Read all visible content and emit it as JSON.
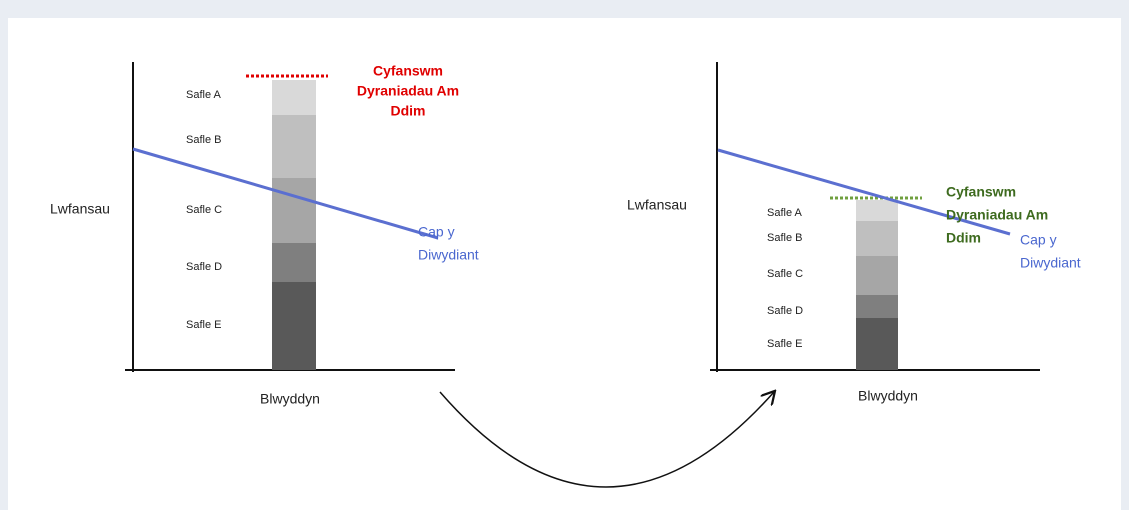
{
  "panels": [
    {
      "y_label": "Lwfansau",
      "x_label": "Blwyddyn",
      "segments": [
        "Safle A",
        "Safle B",
        "Safle C",
        "Safle D",
        "Safle E"
      ],
      "total_label": [
        "Cyfanswm",
        "Dyraniadau Am",
        "Ddim"
      ],
      "cap_label": [
        "Cap y",
        "Diwydiant"
      ]
    },
    {
      "y_label": "Lwfansau",
      "x_label": "Blwyddyn",
      "segments": [
        "Safle A",
        "Safle B",
        "Safle C",
        "Safle D",
        "Safle E"
      ],
      "total_label": [
        "Cyfanswm",
        "Dyraniadau Am",
        "Ddim"
      ],
      "cap_label": [
        "Cap y",
        "Diwydiant"
      ]
    }
  ]
}
